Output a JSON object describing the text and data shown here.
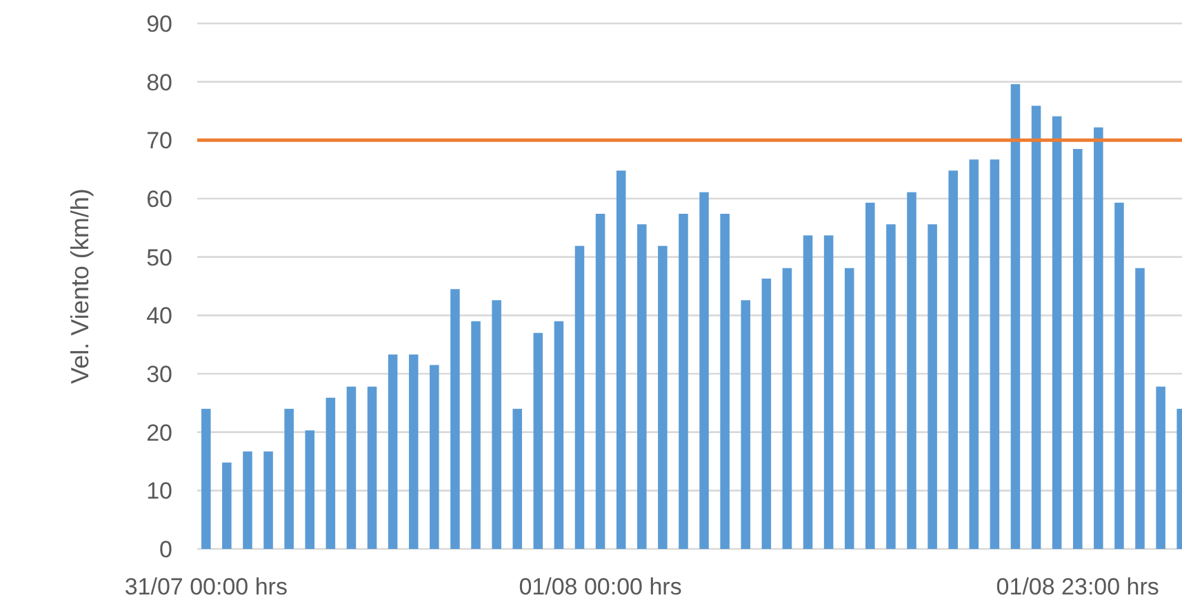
{
  "chart_data": {
    "type": "bar",
    "ylabel": "Vel. Viento (km/h)",
    "categories": [
      "31/07 00:00 hrs",
      null,
      null,
      null,
      null,
      null,
      null,
      null,
      null,
      null,
      null,
      null,
      null,
      null,
      null,
      null,
      null,
      null,
      null,
      "01/08 00:00 hrs",
      null,
      null,
      null,
      null,
      null,
      null,
      null,
      null,
      null,
      null,
      null,
      null,
      null,
      null,
      null,
      null,
      null,
      null,
      null,
      null,
      null,
      null,
      "01/08 23:00 hrs",
      null,
      null,
      null,
      null,
      null
    ],
    "values": [
      24,
      14.8,
      16.7,
      16.7,
      24,
      20.3,
      25.9,
      27.8,
      27.8,
      33.3,
      33.3,
      31.5,
      44.5,
      39,
      42.6,
      24,
      37,
      39,
      51.9,
      57.4,
      64.8,
      55.6,
      51.9,
      57.4,
      61.1,
      57.4,
      42.6,
      46.3,
      48.1,
      53.7,
      53.7,
      48.1,
      59.3,
      55.6,
      61.1,
      55.6,
      64.8,
      66.7,
      66.7,
      79.6,
      75.9,
      74.1,
      68.5,
      72.2,
      59.3,
      48.1,
      27.8,
      24
    ],
    "color": "#5b9bd5",
    "ylim": [
      0,
      90
    ],
    "yticks": [
      0,
      10,
      20,
      30,
      40,
      50,
      60,
      70,
      80,
      90
    ],
    "grid": "y",
    "ref_lines": [
      {
        "axis": "y",
        "value": 70,
        "color": "#ed7d31"
      }
    ]
  }
}
